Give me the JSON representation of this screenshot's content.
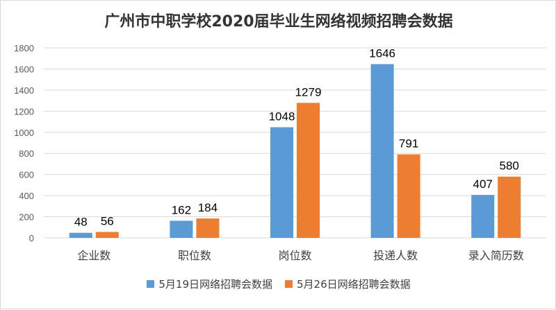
{
  "chart_data": {
    "type": "bar",
    "title": "广州市中职学校2020届毕业生网络视频招聘会数据",
    "categories": [
      "企业数",
      "职位数",
      "岗位数",
      "投递人数",
      "录入简历数"
    ],
    "series": [
      {
        "name": "5月19日网络招聘会数据",
        "values": [
          48,
          162,
          1048,
          1646,
          407
        ],
        "color": "#5b9bd5"
      },
      {
        "name": "5月26日网络招聘会数据",
        "values": [
          56,
          184,
          1279,
          791,
          580
        ],
        "color": "#ed7d31"
      }
    ],
    "ylim": [
      0,
      1800
    ],
    "yticks": [
      0,
      200,
      400,
      600,
      800,
      1000,
      1200,
      1400,
      1600,
      1800
    ],
    "grid": true,
    "legend_position": "bottom"
  }
}
